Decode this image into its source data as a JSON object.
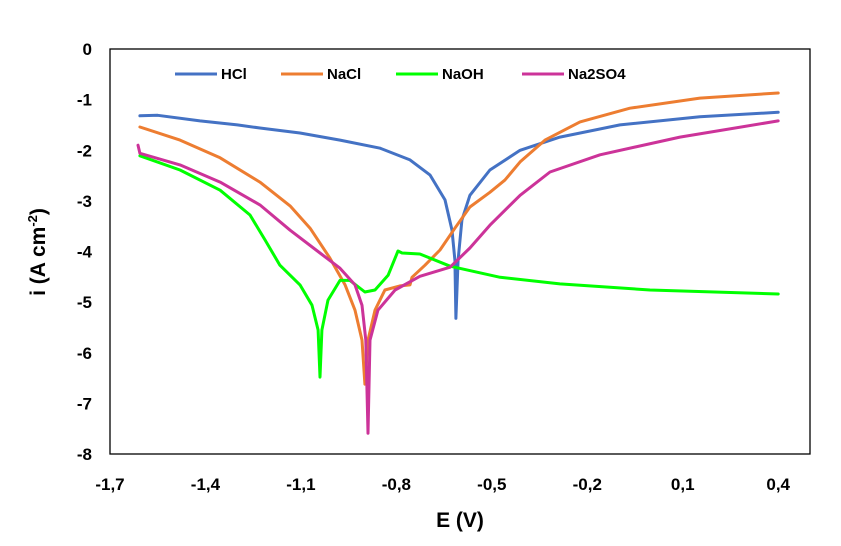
{
  "chart_data": {
    "type": "line",
    "title": "",
    "xlabel": "E (V)",
    "ylabel_main": "i (A cm",
    "ylabel_sup": "-2",
    "ylabel_end": ")",
    "xlim": [
      -1.7,
      0.5
    ],
    "ylim": [
      -8,
      0
    ],
    "x_ticks": [
      -1.7,
      -1.4,
      -1.1,
      -0.8,
      -0.5,
      -0.2,
      0.1,
      0.4
    ],
    "x_tick_labels": [
      "-1,7",
      "-1,4",
      "-1,1",
      "-0,8",
      "-0,5",
      "-0,2",
      "0,1",
      "0,4"
    ],
    "y_ticks": [
      0,
      -1,
      -2,
      -3,
      -4,
      -5,
      -6,
      -7,
      -8
    ],
    "y_tick_labels": [
      "0",
      "-1",
      "-2",
      "-3",
      "-4",
      "-5",
      "-6",
      "-7",
      "-8"
    ],
    "grid": false,
    "legend_position": "top",
    "series": [
      {
        "name": "HCl",
        "color": "#4472C4",
        "points": [
          [
            -1.606,
            -1.32
          ],
          [
            -1.55,
            -1.31
          ],
          [
            -1.417,
            -1.42
          ],
          [
            -1.3,
            -1.5
          ],
          [
            -1.229,
            -1.56
          ],
          [
            -1.103,
            -1.66
          ],
          [
            -0.977,
            -1.8
          ],
          [
            -0.851,
            -1.96
          ],
          [
            -0.757,
            -2.19
          ],
          [
            -0.694,
            -2.49
          ],
          [
            -0.647,
            -2.98
          ],
          [
            -0.625,
            -3.58
          ],
          [
            -0.616,
            -4.17
          ],
          [
            -0.613,
            -5.32
          ],
          [
            -0.606,
            -4.17
          ],
          [
            -0.594,
            -3.38
          ],
          [
            -0.569,
            -2.89
          ],
          [
            -0.506,
            -2.39
          ],
          [
            -0.411,
            -2.0
          ],
          [
            -0.286,
            -1.74
          ],
          [
            -0.097,
            -1.5
          ],
          [
            0.154,
            -1.34
          ],
          [
            0.4,
            -1.25
          ]
        ]
      },
      {
        "name": "NaCl",
        "color": "#ED7D31",
        "points": [
          [
            -1.606,
            -1.54
          ],
          [
            -1.48,
            -1.8
          ],
          [
            -1.354,
            -2.15
          ],
          [
            -1.229,
            -2.63
          ],
          [
            -1.134,
            -3.1
          ],
          [
            -1.071,
            -3.54
          ],
          [
            -1.009,
            -4.13
          ],
          [
            -0.961,
            -4.66
          ],
          [
            -0.93,
            -5.16
          ],
          [
            -0.908,
            -5.75
          ],
          [
            -0.899,
            -6.62
          ],
          [
            -0.889,
            -5.75
          ],
          [
            -0.867,
            -5.16
          ],
          [
            -0.836,
            -4.76
          ],
          [
            -0.789,
            -4.68
          ],
          [
            -0.757,
            -4.66
          ],
          [
            -0.751,
            -4.51
          ],
          [
            -0.71,
            -4.27
          ],
          [
            -0.663,
            -3.97
          ],
          [
            -0.616,
            -3.54
          ],
          [
            -0.569,
            -3.12
          ],
          [
            -0.506,
            -2.83
          ],
          [
            -0.459,
            -2.59
          ],
          [
            -0.411,
            -2.23
          ],
          [
            -0.333,
            -1.8
          ],
          [
            -0.223,
            -1.44
          ],
          [
            -0.066,
            -1.17
          ],
          [
            0.154,
            -0.97
          ],
          [
            0.4,
            -0.87
          ]
        ]
      },
      {
        "name": "NaOH",
        "color": "#00FF00",
        "points": [
          [
            -1.606,
            -2.11
          ],
          [
            -1.48,
            -2.39
          ],
          [
            -1.354,
            -2.79
          ],
          [
            -1.26,
            -3.28
          ],
          [
            -1.213,
            -3.77
          ],
          [
            -1.166,
            -4.27
          ],
          [
            -1.103,
            -4.66
          ],
          [
            -1.065,
            -5.06
          ],
          [
            -1.046,
            -5.55
          ],
          [
            -1.04,
            -6.48
          ],
          [
            -1.034,
            -5.55
          ],
          [
            -1.015,
            -4.96
          ],
          [
            -0.977,
            -4.57
          ],
          [
            -0.946,
            -4.57
          ],
          [
            -0.899,
            -4.8
          ],
          [
            -0.867,
            -4.76
          ],
          [
            -0.826,
            -4.47
          ],
          [
            -0.795,
            -3.99
          ],
          [
            -0.782,
            -4.03
          ],
          [
            -0.726,
            -4.05
          ],
          [
            -0.631,
            -4.29
          ],
          [
            -0.474,
            -4.51
          ],
          [
            -0.286,
            -4.64
          ],
          [
            -0.003,
            -4.76
          ],
          [
            0.4,
            -4.84
          ]
        ]
      },
      {
        "name": "Na2SO4",
        "color": "#CC3399",
        "points": [
          [
            -1.612,
            -1.9
          ],
          [
            -1.606,
            -2.06
          ],
          [
            -1.48,
            -2.29
          ],
          [
            -1.354,
            -2.63
          ],
          [
            -1.229,
            -3.08
          ],
          [
            -1.134,
            -3.58
          ],
          [
            -1.04,
            -4.03
          ],
          [
            -0.977,
            -4.33
          ],
          [
            -0.93,
            -4.66
          ],
          [
            -0.908,
            -5.06
          ],
          [
            -0.896,
            -5.75
          ],
          [
            -0.889,
            -7.59
          ],
          [
            -0.883,
            -5.75
          ],
          [
            -0.858,
            -5.16
          ],
          [
            -0.804,
            -4.76
          ],
          [
            -0.726,
            -4.49
          ],
          [
            -0.631,
            -4.31
          ],
          [
            -0.569,
            -3.93
          ],
          [
            -0.506,
            -3.48
          ],
          [
            -0.411,
            -2.89
          ],
          [
            -0.317,
            -2.43
          ],
          [
            -0.16,
            -2.09
          ],
          [
            0.091,
            -1.74
          ],
          [
            0.4,
            -1.42
          ]
        ]
      }
    ]
  }
}
